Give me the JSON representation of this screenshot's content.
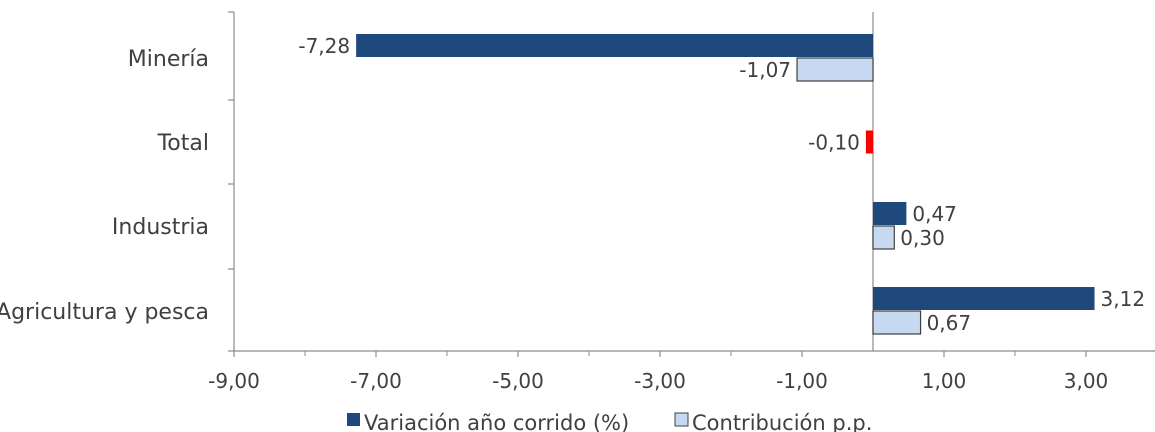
{
  "chart_data": {
    "type": "bar",
    "orientation": "horizontal",
    "categories": [
      "Minería",
      "Total",
      "Industria",
      "Agricultura y pesca"
    ],
    "series": [
      {
        "name": "Variación año corrido (%)",
        "color": "#1f497d",
        "values": [
          -7.28,
          -0.1,
          0.47,
          3.12
        ],
        "labels": [
          "-7,28",
          "-0,10",
          "0,47",
          "3,12"
        ]
      },
      {
        "name": "Contribución p.p.",
        "color": "#c6d9f1",
        "values": [
          -1.07,
          null,
          0.3,
          0.67
        ],
        "labels": [
          "-1,07",
          "",
          "0,30",
          "0,67"
        ]
      }
    ],
    "highlight": {
      "category": "Total",
      "color": "#ff0000"
    },
    "xlim": [
      -9,
      4.2
    ],
    "xticks": [
      -9,
      -7,
      -5,
      -3,
      -1,
      1,
      3
    ],
    "xtick_labels": [
      "-9,00",
      "-7,00",
      "-5,00",
      "-3,00",
      "-1,00",
      "1,00",
      "3,00"
    ],
    "legend_position": "bottom",
    "grid": false,
    "title": "",
    "xlabel": "",
    "ylabel": ""
  }
}
